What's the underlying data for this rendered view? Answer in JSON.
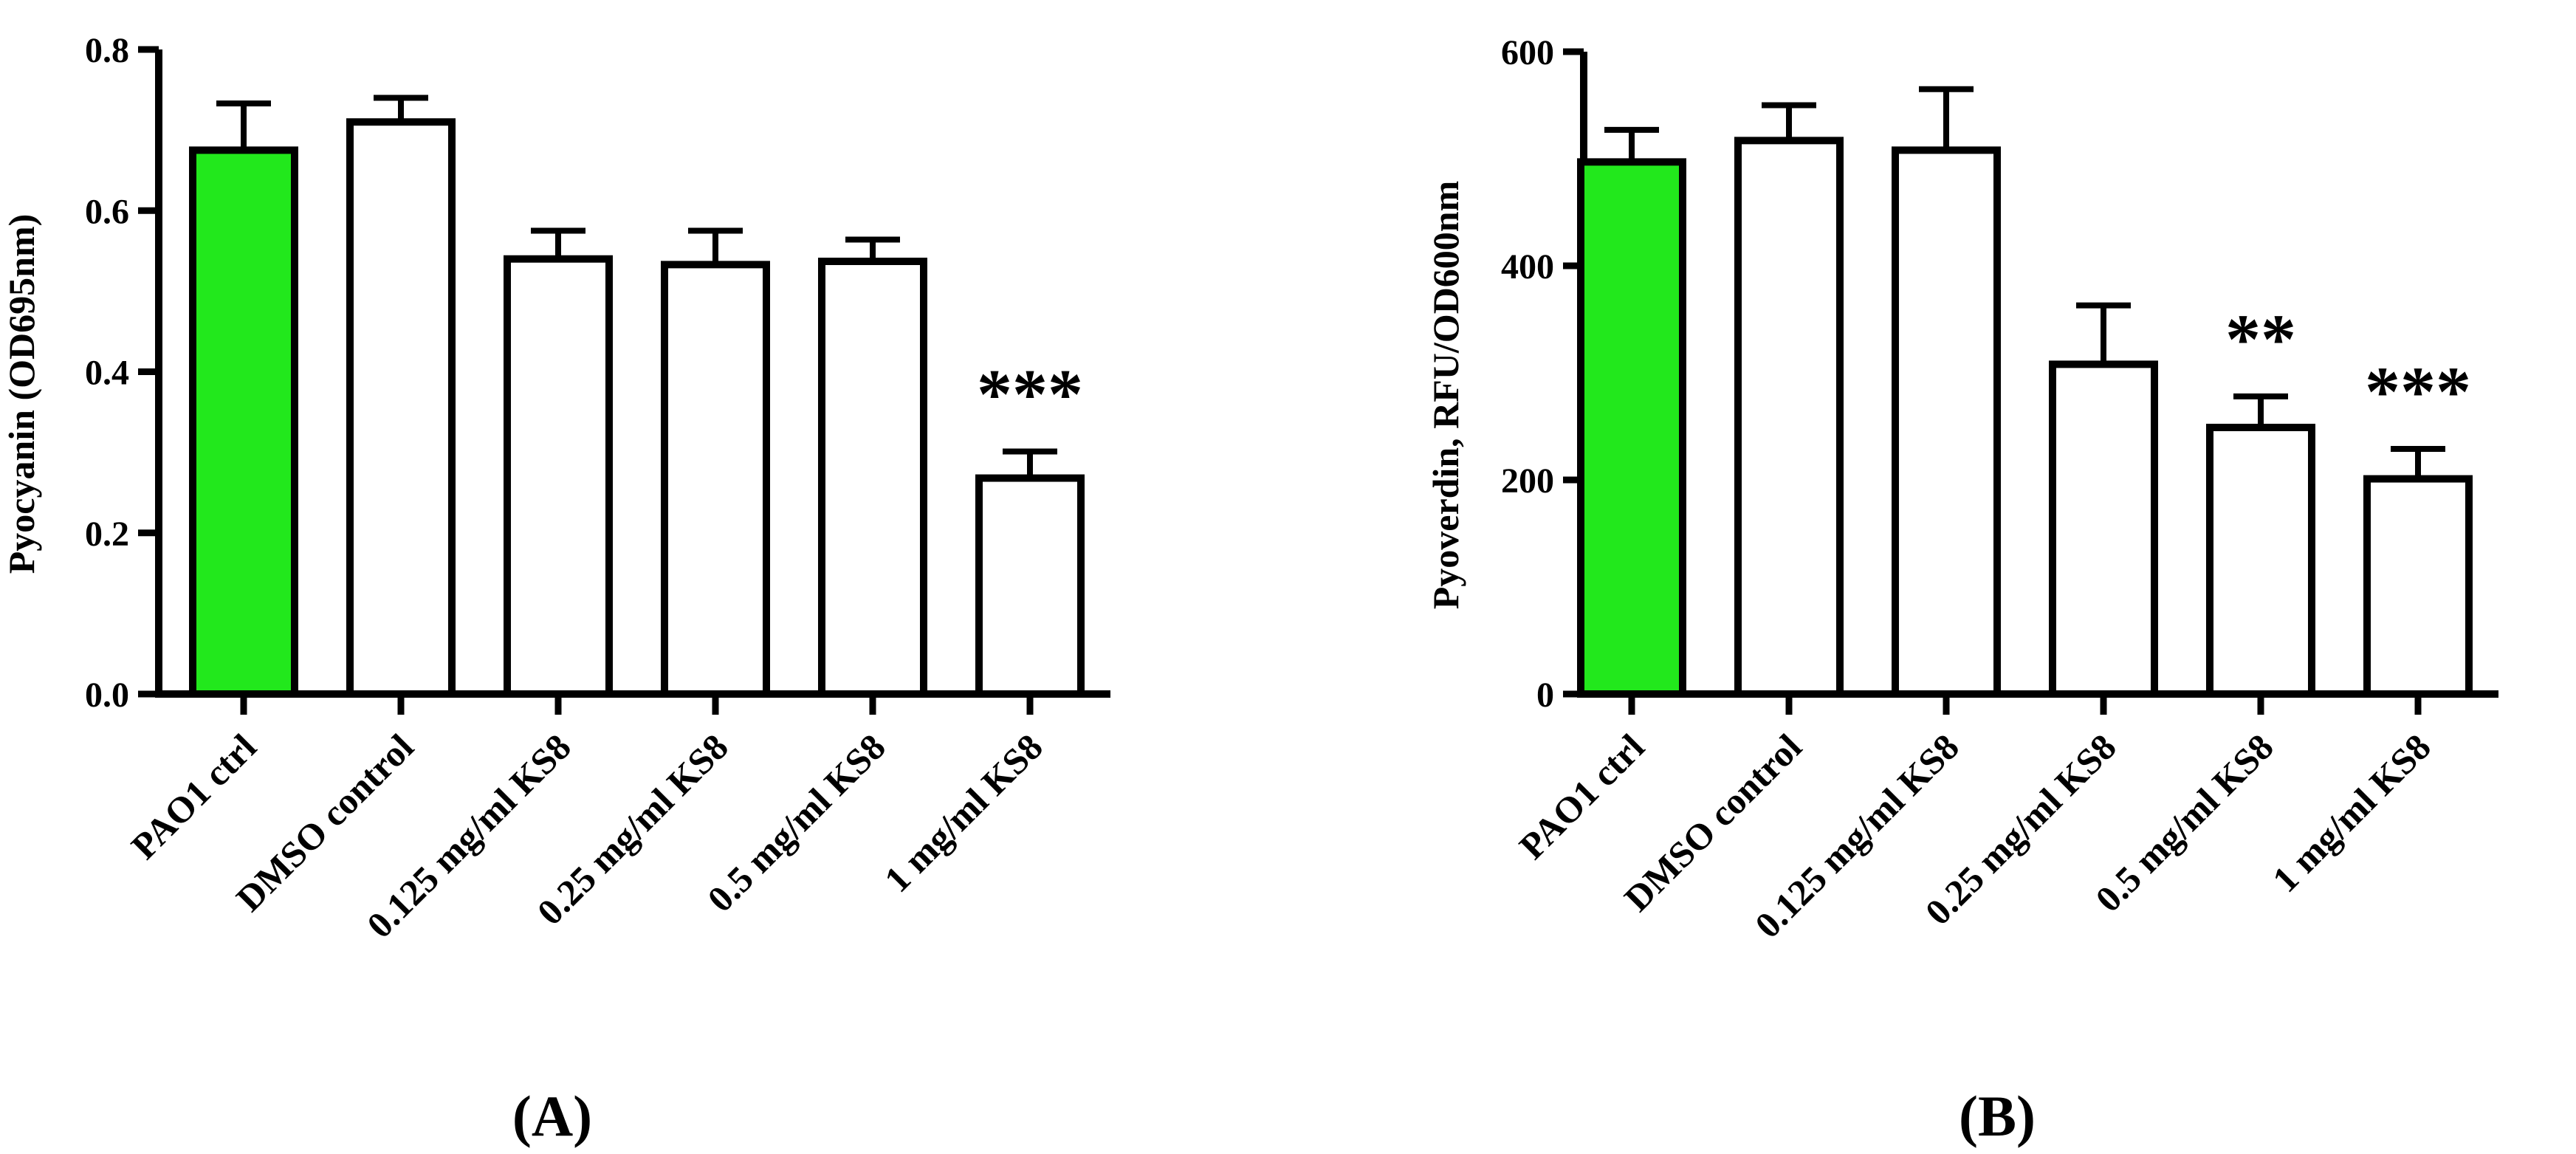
{
  "colors": {
    "highlight": "#22e81c",
    "bar": "#ffffff",
    "stroke": "#000000"
  },
  "chart_data": [
    {
      "type": "bar",
      "panel_label": "(A)",
      "ylabel": "Pyocyanin (OD695nm)",
      "ylim": [
        0,
        0.8
      ],
      "yticks": [
        0,
        0.2,
        0.4,
        0.6,
        0.8
      ],
      "ytick_labels": [
        "0.0",
        "0.2",
        "0.4",
        "0.6",
        "0.8"
      ],
      "categories": [
        "PAO1 ctrl",
        "DMSO control",
        "0.125 mg/ml KS8",
        "0.25 mg/ml KS8",
        "0.5 mg/ml KS8",
        "1 mg/ml KS8"
      ],
      "values": [
        0.675,
        0.71,
        0.54,
        0.533,
        0.537,
        0.268
      ],
      "errors": [
        0.058,
        0.03,
        0.035,
        0.042,
        0.027,
        0.033
      ],
      "fill": [
        "#22e81c",
        "#ffffff",
        "#ffffff",
        "#ffffff",
        "#ffffff",
        "#ffffff"
      ],
      "annotations": [
        "",
        "",
        "",
        "",
        "",
        "***"
      ]
    },
    {
      "type": "bar",
      "panel_label": "(B)",
      "ylabel": "Pyoverdin, RFU/OD600nm",
      "ylim": [
        0,
        600
      ],
      "yticks": [
        0,
        200,
        400,
        600
      ],
      "ytick_labels": [
        "0",
        "200",
        "400",
        "600"
      ],
      "categories": [
        "PAO1 ctrl",
        "DMSO control",
        "0.125 mg/ml KS8",
        "0.25 mg/ml KS8",
        "0.5 mg/ml KS8",
        "1 mg/ml KS8"
      ],
      "values": [
        497,
        517,
        508,
        308,
        249,
        201
      ],
      "errors": [
        30,
        33,
        57,
        55,
        29,
        28
      ],
      "fill": [
        "#22e81c",
        "#ffffff",
        "#ffffff",
        "#ffffff",
        "#ffffff",
        "#ffffff"
      ],
      "annotations": [
        "",
        "",
        "",
        "",
        "**",
        "***"
      ]
    }
  ]
}
